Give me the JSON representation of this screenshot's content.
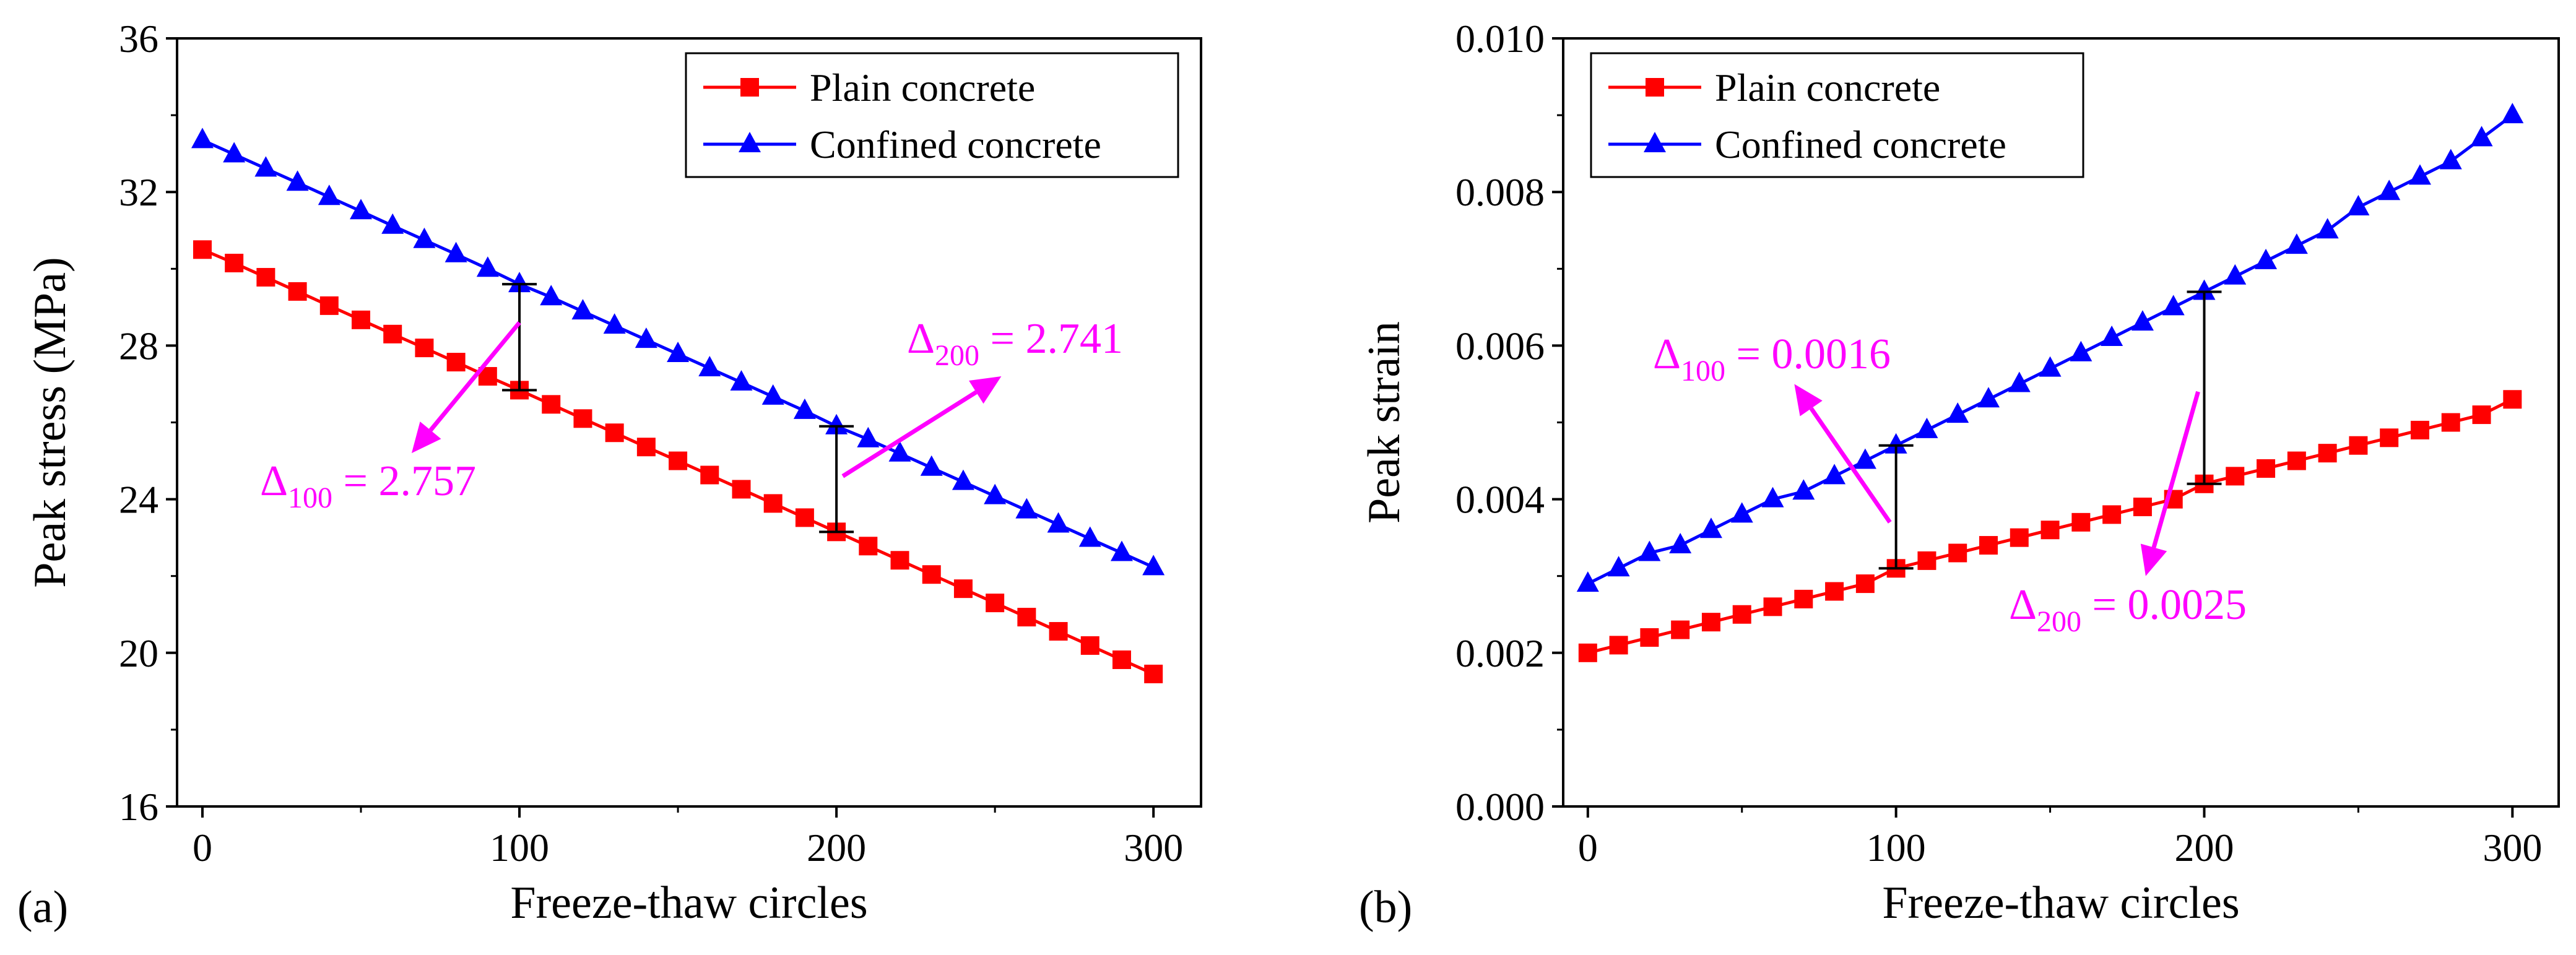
{
  "panel_labels": [
    "(a)",
    "(b)"
  ],
  "legend": {
    "plain": "Plain concrete",
    "confined": "Confined concrete"
  },
  "colors": {
    "plain": "#ff0000",
    "confined": "#0000ff",
    "annotation": "#ff00ff",
    "errorbar": "#000000"
  },
  "chart_data": [
    {
      "type": "line",
      "panel": "(a)",
      "title": "",
      "xlabel": "Freeze-thaw circles",
      "ylabel": "Peak stress (MPa)",
      "xlim": [
        -8,
        315
      ],
      "ylim": [
        16,
        36
      ],
      "xticks": [
        0,
        100,
        200,
        300
      ],
      "xtick_labels": [
        "0",
        "100",
        "200",
        "300"
      ],
      "yticks": [
        16,
        20,
        24,
        28,
        32,
        36
      ],
      "ytick_labels": [
        "16",
        "20",
        "24",
        "28",
        "32",
        "36"
      ],
      "x": [
        0,
        10,
        20,
        30,
        40,
        50,
        60,
        70,
        80,
        90,
        100,
        110,
        120,
        130,
        140,
        150,
        160,
        170,
        180,
        190,
        200,
        210,
        220,
        230,
        240,
        250,
        260,
        270,
        280,
        290,
        300
      ],
      "series": [
        {
          "name": "Plain concrete",
          "marker": "square",
          "values": [
            30.5,
            30.15,
            29.78,
            29.41,
            29.04,
            28.67,
            28.3,
            27.94,
            27.57,
            27.2,
            26.84,
            26.47,
            26.1,
            25.73,
            25.36,
            25.0,
            24.63,
            24.26,
            23.89,
            23.52,
            23.15,
            22.78,
            22.41,
            22.04,
            21.67,
            21.3,
            20.93,
            20.56,
            20.19,
            19.82,
            19.45
          ]
        },
        {
          "name": "Confined concrete",
          "marker": "triangle",
          "values": [
            33.35,
            32.98,
            32.61,
            32.24,
            31.87,
            31.5,
            31.12,
            30.75,
            30.38,
            30.0,
            29.6,
            29.26,
            28.89,
            28.52,
            28.15,
            27.78,
            27.41,
            27.04,
            26.67,
            26.3,
            25.9,
            25.56,
            25.19,
            24.82,
            24.45,
            24.08,
            23.71,
            23.34,
            22.97,
            22.6,
            22.23
          ]
        }
      ],
      "error_bars": [
        {
          "x": 100,
          "y_low": 26.84,
          "y_high": 29.6
        },
        {
          "x": 200,
          "y_low": 23.15,
          "y_high": 25.9
        }
      ],
      "annotations": [
        {
          "prefix": "Δ",
          "sub": "100",
          "text": " = 2.757",
          "arrow_from": [
            100,
            28.6
          ],
          "arrow_to": [
            66,
            25.2
          ]
        },
        {
          "prefix": "Δ",
          "sub": "200",
          "text": " = 2.741",
          "arrow_from": [
            202,
            24.6
          ],
          "arrow_to": [
            252,
            27.2
          ]
        }
      ]
    },
    {
      "type": "line",
      "panel": "(b)",
      "title": "",
      "xlabel": "Freeze-thaw circles",
      "ylabel": "Peak strain",
      "xlim": [
        -8,
        315
      ],
      "ylim": [
        0.0,
        0.01
      ],
      "xticks": [
        0,
        100,
        200,
        300
      ],
      "xtick_labels": [
        "0",
        "100",
        "200",
        "300"
      ],
      "yticks": [
        0.0,
        0.002,
        0.004,
        0.006,
        0.008,
        0.01
      ],
      "ytick_labels": [
        "0.000",
        "0.002",
        "0.004",
        "0.006",
        "0.008",
        "0.010"
      ],
      "x": [
        0,
        10,
        20,
        30,
        40,
        50,
        60,
        70,
        80,
        90,
        100,
        110,
        120,
        130,
        140,
        150,
        160,
        170,
        180,
        190,
        200,
        210,
        220,
        230,
        240,
        250,
        260,
        270,
        280,
        290,
        300
      ],
      "series": [
        {
          "name": "Plain concrete",
          "marker": "square",
          "values": [
            0.002,
            0.0021,
            0.0022,
            0.0023,
            0.0024,
            0.0025,
            0.0026,
            0.0027,
            0.0028,
            0.0029,
            0.0031,
            0.0032,
            0.0033,
            0.0034,
            0.0035,
            0.0036,
            0.0037,
            0.0038,
            0.0039,
            0.004,
            0.0042,
            0.0043,
            0.0044,
            0.0045,
            0.0046,
            0.0047,
            0.0048,
            0.0049,
            0.005,
            0.0051,
            0.0053
          ]
        },
        {
          "name": "Confined concrete",
          "marker": "triangle",
          "values": [
            0.0029,
            0.0031,
            0.0033,
            0.0034,
            0.0036,
            0.0038,
            0.004,
            0.0041,
            0.0043,
            0.0045,
            0.0047,
            0.0049,
            0.0051,
            0.0053,
            0.0055,
            0.0057,
            0.0059,
            0.0061,
            0.0063,
            0.0065,
            0.0067,
            0.0069,
            0.0071,
            0.0073,
            0.0075,
            0.0078,
            0.008,
            0.0082,
            0.0084,
            0.0087,
            0.009
          ]
        }
      ],
      "error_bars": [
        {
          "x": 100,
          "y_low": 0.0031,
          "y_high": 0.0047
        },
        {
          "x": 200,
          "y_low": 0.0042,
          "y_high": 0.0067
        }
      ],
      "annotations": [
        {
          "prefix": "Δ",
          "sub": "100",
          "text": " = 0.0016",
          "arrow_from": [
            98,
            0.0037
          ],
          "arrow_to": [
            67,
            0.0055
          ]
        },
        {
          "prefix": "Δ",
          "sub": "200",
          "text": " = 0.0025",
          "arrow_from": [
            198,
            0.0054
          ],
          "arrow_to": [
            181,
            0.003
          ]
        }
      ]
    }
  ]
}
